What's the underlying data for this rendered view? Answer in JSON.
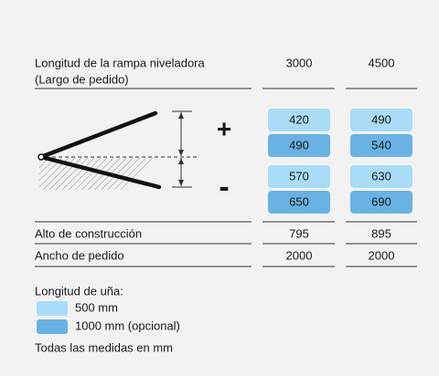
{
  "header": {
    "label_lines": [
      "Longitud de la rampa niveladora",
      "(Largo de pedido)"
    ],
    "columns": [
      3000,
      4500
    ]
  },
  "lip_table": {
    "plus_sign": "+",
    "minus_sign": "-",
    "rows": [
      [
        420,
        490
      ],
      [
        490,
        540
      ],
      [
        570,
        630
      ],
      [
        650,
        690
      ]
    ],
    "row_legend_item": [
      0,
      1,
      0,
      1
    ]
  },
  "rows": [
    {
      "label": "Alto de construcción",
      "values": [
        795,
        895
      ]
    },
    {
      "label": "Ancho de pedido",
      "values": [
        2000,
        2000
      ]
    }
  ],
  "legend": {
    "title": "Longitud de uña:",
    "items": [
      {
        "label": "500 mm",
        "color": "#a9dcf6"
      },
      {
        "label": "1000 mm (opcional)",
        "color": "#69b2e3"
      }
    ],
    "note": "Todas las medidas en mm"
  }
}
